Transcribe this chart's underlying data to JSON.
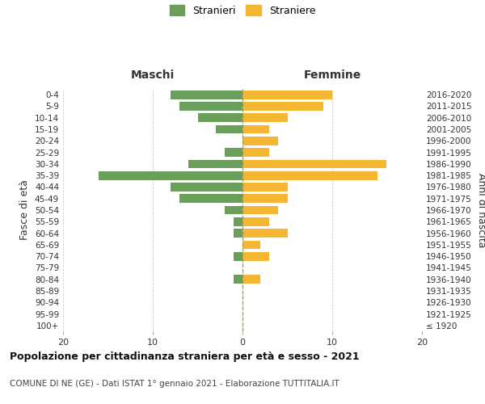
{
  "age_groups": [
    "100+",
    "95-99",
    "90-94",
    "85-89",
    "80-84",
    "75-79",
    "70-74",
    "65-69",
    "60-64",
    "55-59",
    "50-54",
    "45-49",
    "40-44",
    "35-39",
    "30-34",
    "25-29",
    "20-24",
    "15-19",
    "10-14",
    "5-9",
    "0-4"
  ],
  "birth_years": [
    "≤ 1920",
    "1921-1925",
    "1926-1930",
    "1931-1935",
    "1936-1940",
    "1941-1945",
    "1946-1950",
    "1951-1955",
    "1956-1960",
    "1961-1965",
    "1966-1970",
    "1971-1975",
    "1976-1980",
    "1981-1985",
    "1986-1990",
    "1991-1995",
    "1996-2000",
    "2001-2005",
    "2006-2010",
    "2011-2015",
    "2016-2020"
  ],
  "males": [
    0,
    0,
    0,
    0,
    1,
    0,
    1,
    0,
    1,
    1,
    2,
    7,
    8,
    16,
    6,
    2,
    0,
    3,
    5,
    7,
    8
  ],
  "females": [
    0,
    0,
    0,
    0,
    2,
    0,
    3,
    2,
    5,
    3,
    4,
    5,
    5,
    15,
    16,
    3,
    4,
    3,
    5,
    9,
    10
  ],
  "male_color": "#6a9e5b",
  "female_color": "#f5b731",
  "background_color": "#ffffff",
  "grid_color": "#cccccc",
  "center_line_color": "#999966",
  "title": "Popolazione per cittadinanza straniera per età e sesso - 2021",
  "subtitle": "COMUNE DI NE (GE) - Dati ISTAT 1° gennaio 2021 - Elaborazione TUTTITALIA.IT",
  "xlabel_left": "Maschi",
  "xlabel_right": "Femmine",
  "ylabel_left": "Fasce di età",
  "ylabel_right": "Anni di nascita",
  "legend_male": "Stranieri",
  "legend_female": "Straniere",
  "xlim": 20,
  "xticks": [
    -20,
    -10,
    0,
    10,
    20
  ],
  "xticklabels": [
    "20",
    "10",
    "0",
    "10",
    "20"
  ]
}
